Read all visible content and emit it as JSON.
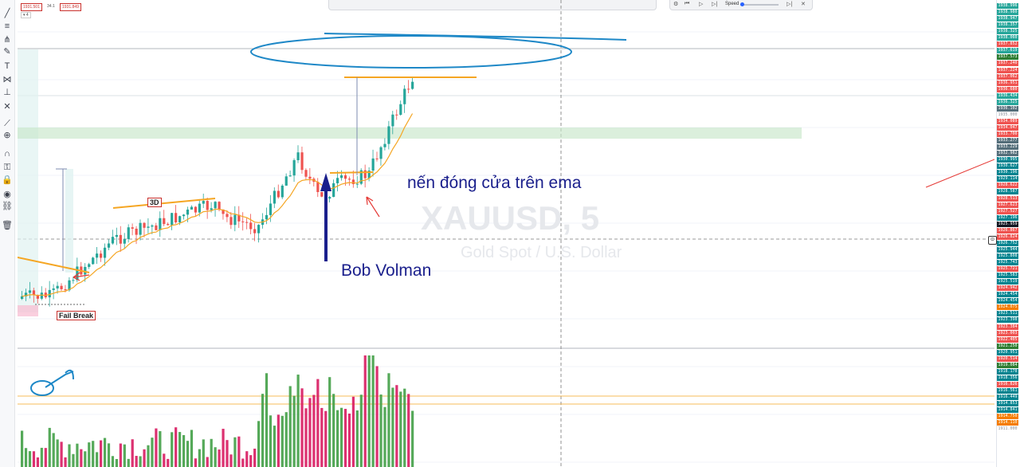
{
  "header": {
    "ohlc_open": "1931.501",
    "ohlc_mid": "34.1",
    "ohlc_close": "1931.849",
    "indicator_count": "4"
  },
  "replay": {
    "speed_label": "Speed"
  },
  "watermark": {
    "symbol": "XAUUSD, 5",
    "description": "Gold Spot / U.S. Dollar"
  },
  "annotations": {
    "text_main": "nến đóng cửa trên ema",
    "text_author": "Bob Volman",
    "label_3d": "3D",
    "label_fail_break": "Fail Break"
  },
  "price_scale": {
    "labels": [
      {
        "v": "1938.996",
        "c": "#26a69a"
      },
      {
        "v": "1938.980",
        "c": "#26a69a"
      },
      {
        "v": "1938.947",
        "c": "#26a69a"
      },
      {
        "v": "1938.357",
        "c": "#26a69a"
      },
      {
        "v": "1938.325",
        "c": "#26a69a"
      },
      {
        "v": "1938.060",
        "c": "#26a69a"
      },
      {
        "v": "1937.852",
        "c": "#ef5350"
      },
      {
        "v": "1937.619",
        "c": "#26a69a"
      },
      {
        "v": "1937.573",
        "c": "#2e7d32"
      },
      {
        "v": "1937.240",
        "c": "#ef5350"
      },
      {
        "v": "1937.224",
        "c": "#ef5350"
      },
      {
        "v": "1937.062",
        "c": "#ef5350"
      },
      {
        "v": "1936.951",
        "c": "#ef5350"
      },
      {
        "v": "1936.680",
        "c": "#ef5350"
      },
      {
        "v": "1936.434",
        "c": "#26a69a"
      },
      {
        "v": "1936.325",
        "c": "#26a69a"
      },
      {
        "v": "1936.102",
        "c": "#546e7a"
      },
      {
        "v": "1935.000",
        "c": "none"
      },
      {
        "v": "1934.089",
        "c": "#ef5350"
      },
      {
        "v": "1934.047",
        "c": "#ef5350"
      },
      {
        "v": "1933.700",
        "c": "#ef5350"
      },
      {
        "v": "1933.277",
        "c": "#546e7a"
      },
      {
        "v": "1933.229",
        "c": "#546e7a"
      },
      {
        "v": "1932.982",
        "c": "#546e7a"
      },
      {
        "v": "1930.995",
        "c": "#00838f"
      },
      {
        "v": "1930.627",
        "c": "#00838f"
      },
      {
        "v": "1930.196",
        "c": "#00838f"
      },
      {
        "v": "1929.114",
        "c": "#00838f"
      },
      {
        "v": "1928.622",
        "c": "#ef5350"
      },
      {
        "v": "1928.587",
        "c": "#00838f"
      },
      {
        "v": "1928.513",
        "c": "#ef5350"
      },
      {
        "v": "1927.623",
        "c": "#ef5350"
      },
      {
        "v": "1927.527",
        "c": "#ef5350"
      },
      {
        "v": "1927.196",
        "c": "#00838f"
      },
      {
        "v": "1925.959",
        "c": "#131722"
      },
      {
        "v": "1926.867",
        "c": "#ef5350"
      },
      {
        "v": "1926.824",
        "c": "#ef5350"
      },
      {
        "v": "1926.752",
        "c": "#00838f"
      },
      {
        "v": "1925.944",
        "c": "#00838f"
      },
      {
        "v": "1925.808",
        "c": "#00838f"
      },
      {
        "v": "1925.743",
        "c": "#00838f"
      },
      {
        "v": "1925.721",
        "c": "#ef5350"
      },
      {
        "v": "1925.583",
        "c": "#00838f"
      },
      {
        "v": "1925.519",
        "c": "#00838f"
      },
      {
        "v": "1924.942",
        "c": "#ef5350"
      },
      {
        "v": "1924.454",
        "c": "#00838f"
      },
      {
        "v": "1924.454",
        "c": "#00838f"
      },
      {
        "v": "1924.075",
        "c": "#f57c00"
      },
      {
        "v": "1923.511",
        "c": "#00838f"
      },
      {
        "v": "1923.398",
        "c": "#00838f"
      },
      {
        "v": "1923.384",
        "c": "#ef5350"
      },
      {
        "v": "1923.003",
        "c": "#ef5350"
      },
      {
        "v": "1922.405",
        "c": "#ef5350"
      },
      {
        "v": "1921.250",
        "c": "#2e7d32"
      },
      {
        "v": "1920.951",
        "c": "#00838f"
      },
      {
        "v": "1920.514",
        "c": "#ef5350"
      },
      {
        "v": "1919.084",
        "c": "#2e7d32"
      },
      {
        "v": "1918.178",
        "c": "#00838f"
      },
      {
        "v": "1918.356",
        "c": "#00838f"
      },
      {
        "v": "1916.826",
        "c": "#ef5350"
      },
      {
        "v": "1916.561",
        "c": "#00838f"
      },
      {
        "v": "1916.449",
        "c": "#00838f"
      },
      {
        "v": "1914.853",
        "c": "#00838f"
      },
      {
        "v": "1914.841",
        "c": "#00838f"
      },
      {
        "v": "1914.750",
        "c": "#f57c00"
      },
      {
        "v": "1914.110",
        "c": "#f57c00"
      },
      {
        "v": "1911.000",
        "c": "none"
      }
    ]
  },
  "tools": [
    "trend-line-icon",
    "horizontal-lines-icon",
    "pitchfork-icon",
    "brush-icon",
    "text-icon",
    "pattern-icon",
    "measure-icon",
    "close-icon",
    "ruler-icon",
    "zoom-icon",
    "magnet-icon",
    "lock-draw-icon",
    "lock-icon",
    "eye-icon",
    "link-icon",
    "trash-icon"
  ],
  "colors": {
    "bull": "#26a69a",
    "bear": "#ef5350",
    "ema": "#f5a623",
    "annotation": "#1a1f8c",
    "ellipse": "#1e88c7"
  }
}
